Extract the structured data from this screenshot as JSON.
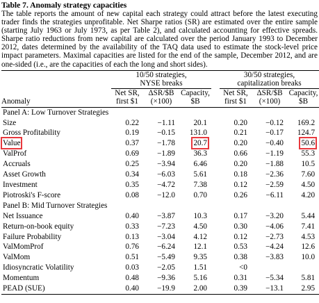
{
  "title": "Table 7. Anomaly strategy capacities",
  "caption": "The table reports the amount of new capital each strategy could attract before the latest executing trader finds the strategies unprofitable. Net Sharpe ratios (SR) are estimated over the entire sample (starting July 1963 or July 1973, as per Table 2), and calculated accounting for effective spreads. Sharpe ratio reductions from new capital are calculated over the period January 1993 to December 2012, dates determined by the availability of the TAQ data used to estimate the stock-level price impact parameters. Maximal capacities are listed for the end of the sample, December 2012, and are one-sided (i.e., are the capacities of each the long and short sides).",
  "table": {
    "group_headers": [
      [
        "10/50 strategies,",
        "NYSE breaks"
      ],
      [
        "30/50 strategies,",
        "capitalization breaks"
      ]
    ],
    "column_headers": [
      [
        "Anomaly"
      ],
      [
        "Net SR,",
        "first $1"
      ],
      [
        "ΔSR/$B",
        "(×100)"
      ],
      [
        "Capacity,",
        "$B"
      ],
      [
        "Net SR,",
        "first $1"
      ],
      [
        "ΔSR/$B",
        "(×100)"
      ],
      [
        "Capacity,",
        "$B"
      ]
    ],
    "panels": [
      {
        "label": "Panel A: Low Turnover Strategies",
        "rows": [
          {
            "cells": [
              "Size",
              "0.22",
              "−1.11",
              "20.1",
              "0.20",
              "−0.12",
              "169.2"
            ]
          },
          {
            "cells": [
              "Gross Profitability",
              "0.19",
              "−0.15",
              "131.0",
              "0.21",
              "−0.17",
              "124.7"
            ]
          },
          {
            "cells": [
              "Value",
              "0.37",
              "−1.78",
              "20.7",
              "0.20",
              "−0.40",
              "50.6"
            ],
            "highlight": [
              0,
              3,
              6
            ]
          },
          {
            "cells": [
              "ValProf",
              "0.69",
              "−1.89",
              "36.3",
              "0.66",
              "−1.19",
              "55.3"
            ]
          },
          {
            "cells": [
              "Accruals",
              "0.25",
              "−3.94",
              "6.46",
              "0.20",
              "−1.88",
              "10.5"
            ]
          },
          {
            "cells": [
              "Asset Growth",
              "0.34",
              "−6.03",
              "5.61",
              "0.18",
              "−2.36",
              "7.60"
            ]
          },
          {
            "cells": [
              "Investment",
              "0.35",
              "−4.72",
              "7.38",
              "0.12",
              "−2.59",
              "4.50"
            ]
          },
          {
            "cells": [
              "Piotroski's F-score",
              "0.08",
              "−12.0",
              "0.70",
              "0.26",
              "−6.11",
              "4.20"
            ]
          }
        ]
      },
      {
        "label": "Panel B: Mid Turnover Strategies",
        "rows": [
          {
            "cells": [
              "Net Issuance",
              "0.40",
              "−3.87",
              "10.3",
              "0.17",
              "−3.20",
              "5.44"
            ]
          },
          {
            "cells": [
              "Return-on-book equity",
              "0.33",
              "−7.23",
              "4.50",
              "0.30",
              "−4.06",
              "7.41"
            ]
          },
          {
            "cells": [
              "Failure Probability",
              "0.13",
              "−3.04",
              "4.12",
              "0.12",
              "−2.73",
              "4.53"
            ]
          },
          {
            "cells": [
              "ValMomProf",
              "0.76",
              "−6.24",
              "12.1",
              "0.53",
              "−4.24",
              "12.6"
            ]
          },
          {
            "cells": [
              "ValMom",
              "0.51",
              "−5.49",
              "9.35",
              "0.38",
              "−3.83",
              "10.0"
            ]
          },
          {
            "cells": [
              "Idiosyncratic Volatility",
              "0.03",
              "−2.05",
              "1.51",
              "<0"
            ]
          },
          {
            "cells": [
              "Momentum",
              "0.48",
              "−9.36",
              "5.16",
              "0.31",
              "−5.34",
              "5.81"
            ]
          },
          {
            "cells": [
              "PEAD (SUE)",
              "0.40",
              "−19.9",
              "2.00",
              "0.39",
              "−13.1",
              "2.95"
            ]
          }
        ]
      }
    ]
  }
}
